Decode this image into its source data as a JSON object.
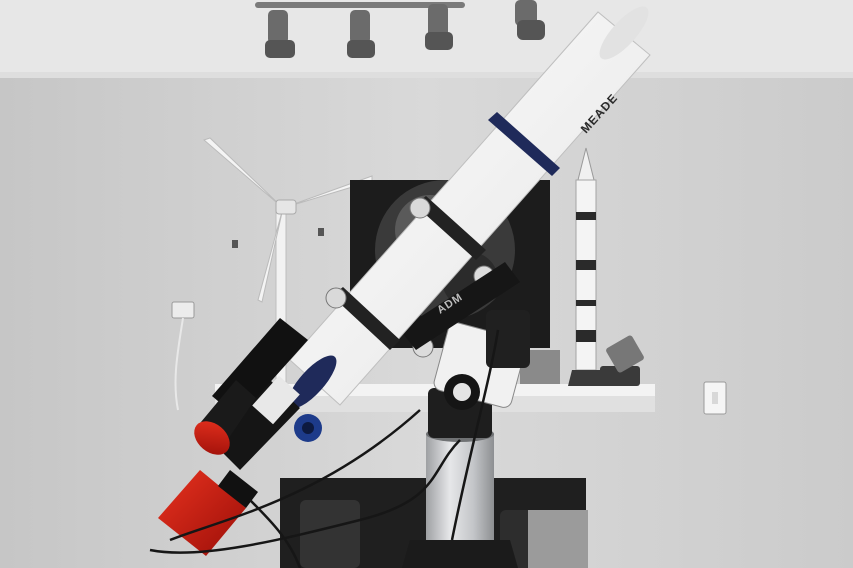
{
  "scene": {
    "telescope_brand": "MEADE",
    "mount_brand": "ADM"
  },
  "colors": {
    "ceiling": "#e9e9e9",
    "wall": "#d2d2d2",
    "tube": "#f4f4f4",
    "tube_ring": "#1f2a5a",
    "camera_red": "#c8160f",
    "mount_black": "#1a1a1a",
    "pier_silver": "#c9cbcd"
  }
}
